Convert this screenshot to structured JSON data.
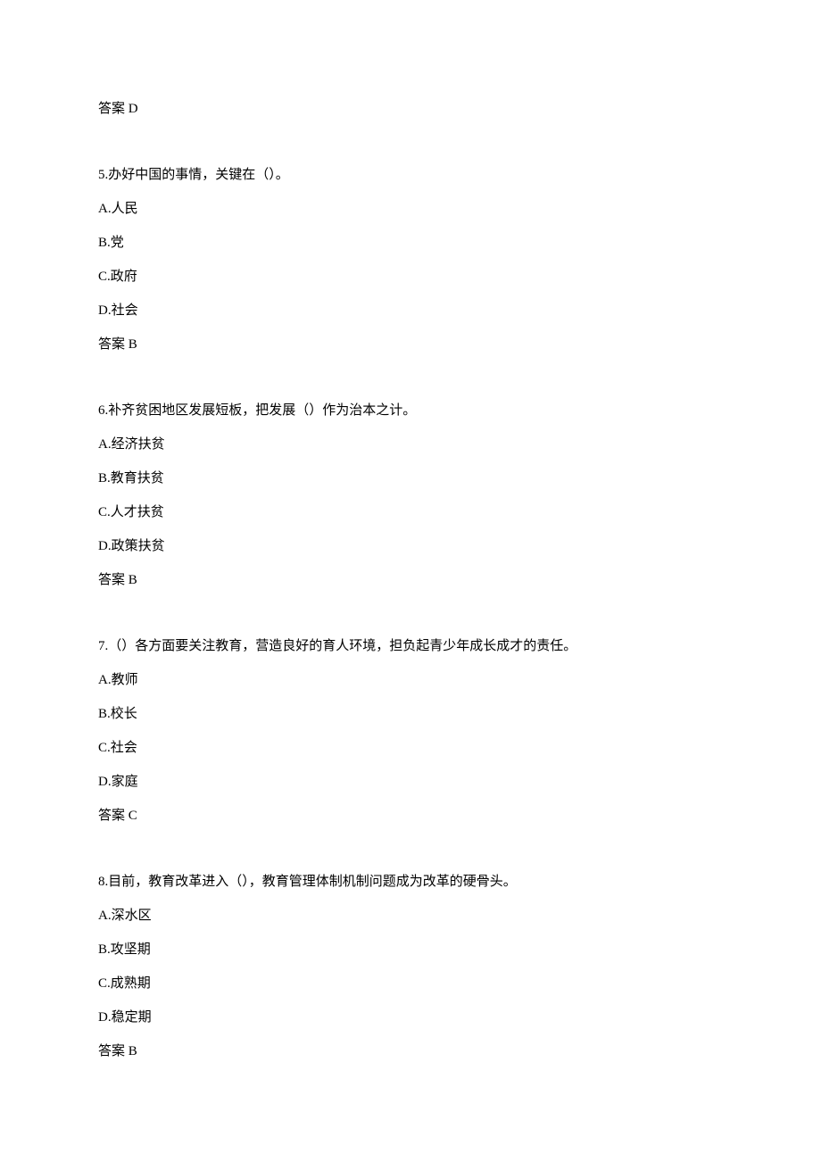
{
  "document": {
    "font_family": "SimSun",
    "font_size": 15,
    "text_color": "#000000",
    "background_color": "#ffffff",
    "line_height": 1.6,
    "block_spacing": 50
  },
  "blocks": [
    {
      "lines": [
        {
          "text": "答案 D",
          "is_answer": true
        }
      ]
    },
    {
      "lines": [
        {
          "text": "5.办好中国的事情，关键在（）。"
        },
        {
          "text": "A.人民"
        },
        {
          "text": "B.党"
        },
        {
          "text": "C.政府"
        },
        {
          "text": "D.社会"
        },
        {
          "text": "答案 B",
          "is_answer": true
        }
      ]
    },
    {
      "lines": [
        {
          "text": "6.补齐贫困地区发展短板，把发展（）作为治本之计。"
        },
        {
          "text": "A.经济扶贫"
        },
        {
          "text": "B.教育扶贫"
        },
        {
          "text": "C.人才扶贫"
        },
        {
          "text": "D.政策扶贫"
        },
        {
          "text": "答案 B",
          "is_answer": true
        }
      ]
    },
    {
      "lines": [
        {
          "text": "7.（）各方面要关注教育，营造良好的育人环境，担负起青少年成长成才的责任。"
        },
        {
          "text": "A.教师"
        },
        {
          "text": "B.校长"
        },
        {
          "text": "C.社会"
        },
        {
          "text": "D.家庭"
        },
        {
          "text": "答案 C",
          "is_answer": true
        }
      ]
    },
    {
      "lines": [
        {
          "text": "8.目前，教育改革进入（），教育管理体制机制问题成为改革的硬骨头。"
        },
        {
          "text": "A.深水区"
        },
        {
          "text": "B.攻坚期"
        },
        {
          "text": "C.成熟期"
        },
        {
          "text": "D.稳定期"
        },
        {
          "text": "答案 B",
          "is_answer": true
        }
      ]
    }
  ]
}
